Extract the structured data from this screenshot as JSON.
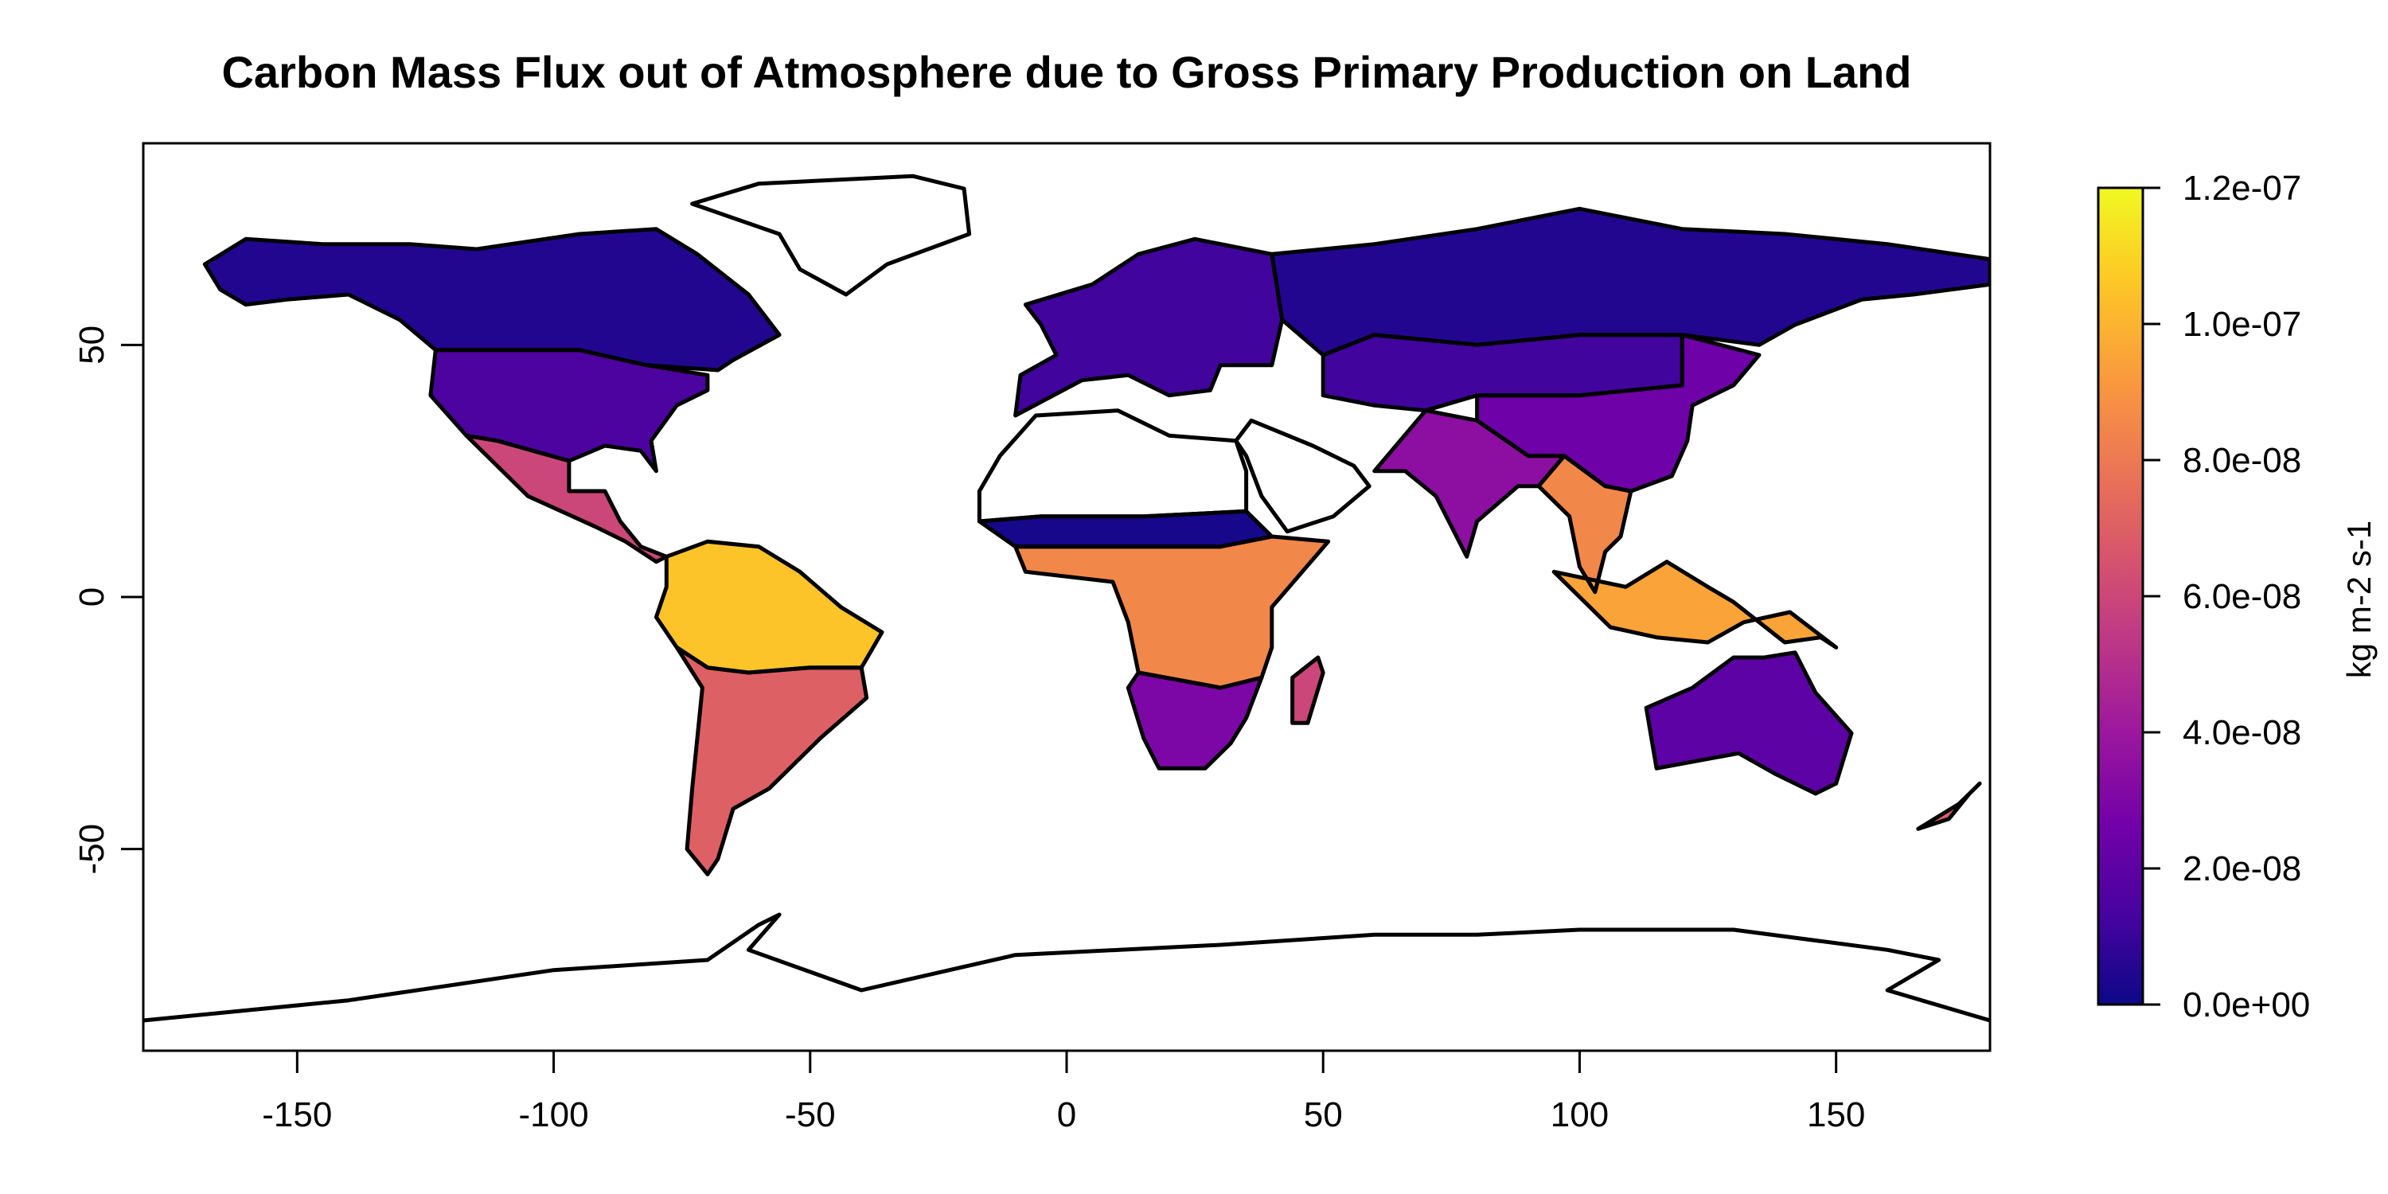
{
  "title": "Carbon Mass Flux out of Atmosphere due to Gross Primary Production on Land",
  "x_axis": {
    "range": [
      -180,
      180
    ],
    "ticks": [
      -150,
      -100,
      -50,
      0,
      50,
      100,
      150
    ],
    "tick_labels": [
      "-150",
      "-100",
      "-50",
      "0",
      "50",
      "100",
      "150"
    ]
  },
  "y_axis": {
    "range": [
      -90,
      90
    ],
    "ticks": [
      -50,
      0,
      50
    ],
    "tick_labels": [
      "-50",
      "0",
      "50"
    ]
  },
  "colorbar": {
    "unit_label": "kg m-2 s-1",
    "range": [
      0,
      1.2e-07
    ],
    "ticks": [
      0,
      2e-08,
      4e-08,
      6e-08,
      8e-08,
      1e-07,
      1.2e-07
    ],
    "tick_labels": [
      "0.0e+00",
      "2.0e-08",
      "4.0e-08",
      "6.0e-08",
      "8.0e-08",
      "1.0e-07",
      "1.2e-07"
    ],
    "colors": [
      "#0d0887",
      "#47039f",
      "#7301a8",
      "#9c179e",
      "#bd3786",
      "#d8576b",
      "#ed7953",
      "#fa9e3b",
      "#fdc926",
      "#f0f921"
    ]
  },
  "land_regions": [
    {
      "name": "Greenland",
      "value": null
    },
    {
      "name": "North America (boreal)",
      "value": 5e-09
    },
    {
      "name": "USA",
      "value": 1.5e-08
    },
    {
      "name": "Central America",
      "value": 6e-08
    },
    {
      "name": "Amazon",
      "value": 1.05e-07
    },
    {
      "name": "South America (south)",
      "value": 7e-08
    },
    {
      "name": "Europe",
      "value": 1.2e-08
    },
    {
      "name": "North Africa (Sahara)",
      "value": null
    },
    {
      "name": "Sahel",
      "value": 2e-09
    },
    {
      "name": "Central Africa",
      "value": 8.5e-08
    },
    {
      "name": "Southern Africa",
      "value": 3e-08
    },
    {
      "name": "Madagascar",
      "value": 6e-08
    },
    {
      "name": "Arabia",
      "value": null
    },
    {
      "name": "Russia / Siberia",
      "value": 5e-09
    },
    {
      "name": "Central Asia",
      "value": 1.2e-08
    },
    {
      "name": "India",
      "value": 3.5e-08
    },
    {
      "name": "China",
      "value": 2.5e-08
    },
    {
      "name": "Southeast Asia",
      "value": 8.5e-08
    },
    {
      "name": "Indonesia / New Guinea",
      "value": 9.5e-08
    },
    {
      "name": "Australia",
      "value": 2e-08
    },
    {
      "name": "New Zealand",
      "value": 7e-08
    }
  ]
}
